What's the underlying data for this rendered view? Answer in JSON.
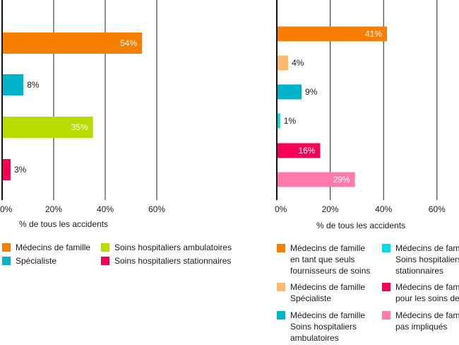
{
  "chart_data": [
    {
      "type": "bar",
      "orientation": "horizontal",
      "xlabel": "% de tous les accidents",
      "xlim": [
        0,
        60
      ],
      "ticks": [
        "0%",
        "20%",
        "40%",
        "60%"
      ],
      "grid": true,
      "categories": [
        "Médecins de famille",
        "Spécialiste",
        "Soins hospitaliers ambulatoires",
        "Soins hospitaliers stationnaires"
      ],
      "values": [
        54,
        8,
        35,
        3
      ],
      "labels": [
        "54%",
        "8%",
        "35%",
        "3%"
      ],
      "colors": [
        "#f77f00",
        "#00b5c9",
        "#b8dc00",
        "#f50057"
      ],
      "legend": [
        {
          "label": "Médecins de famille",
          "color": "#f77f00"
        },
        {
          "label": "Spécialiste",
          "color": "#00b5c9"
        },
        {
          "label": "Soins hospitaliers ambulatoires",
          "color": "#b8dc00"
        },
        {
          "label": "Soins hospitaliers stationnaires",
          "color": "#f50057"
        }
      ]
    },
    {
      "type": "bar",
      "orientation": "horizontal",
      "xlabel": "% de tous les accidents",
      "xlim": [
        0,
        60
      ],
      "ticks": [
        "0%",
        "20%",
        "40%",
        "60%"
      ],
      "grid": true,
      "values": [
        41,
        4,
        9,
        1,
        16,
        29
      ],
      "labels": [
        "41%",
        "4%",
        "9%",
        "1%",
        "16%",
        "29%"
      ],
      "colors": [
        "#f77f00",
        "#ffb870",
        "#00b5c9",
        "#00dce6",
        "#f50057",
        "#ff7aad"
      ],
      "legend": [
        {
          "lines": [
            "Médecins de famille",
            "en tant que seuls",
            "fournisseurs de soins"
          ],
          "color": "#f77f00"
        },
        {
          "lines": [
            "Médecins de famille",
            "Spécialiste"
          ],
          "color": "#ffb870"
        },
        {
          "lines": [
            "Médecins de famille",
            "Soins hospitaliers",
            "ambulatoires"
          ],
          "color": "#00b5c9"
        },
        {
          "lines": [
            "Médecins de fami",
            "Soins hospitaliers",
            "stationnaires"
          ],
          "color": "#00dce6"
        },
        {
          "lines": [
            "Médecins de fami",
            "pour les soins de"
          ],
          "color": "#f50057"
        },
        {
          "lines": [
            "Médecins de fami",
            "pas impliqués"
          ],
          "color": "#ff7aad"
        }
      ]
    }
  ]
}
